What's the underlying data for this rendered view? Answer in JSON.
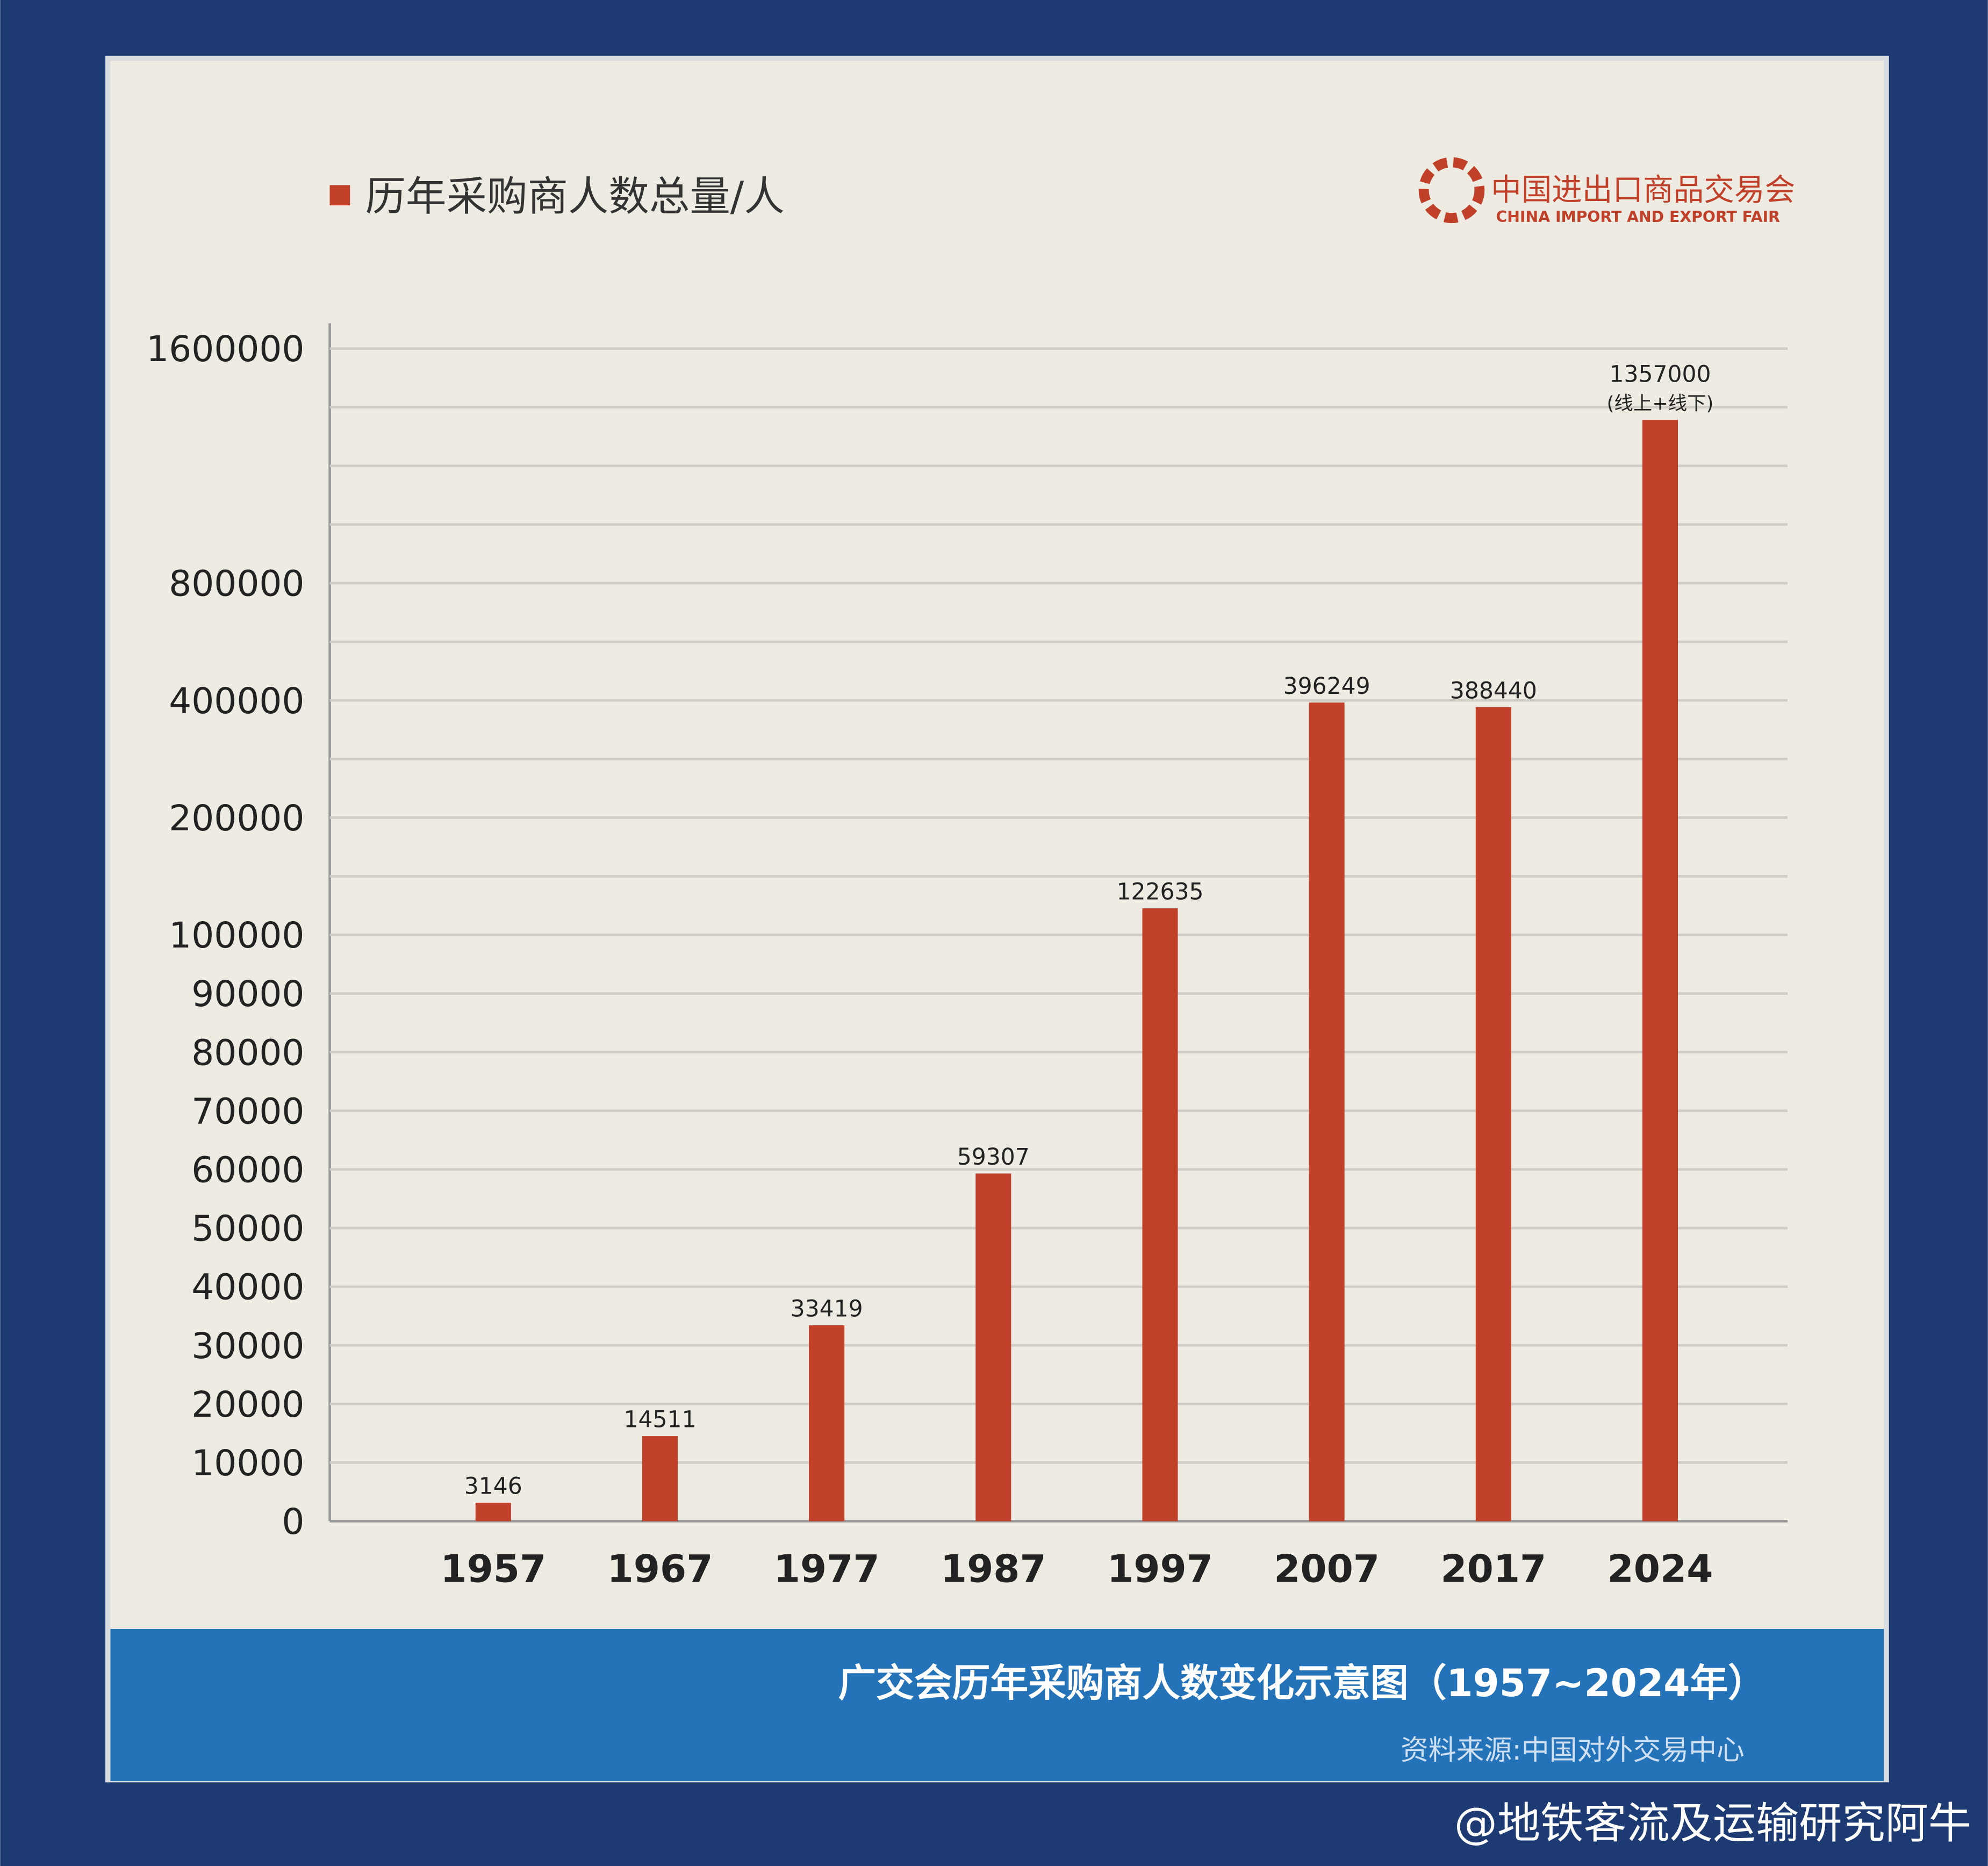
{
  "chart_data": {
    "type": "bar",
    "title": "历年采购商人数总量/人",
    "logo": {
      "name": "中国进出口商品交易会",
      "subtitle": "CHINA IMPORT AND EXPORT FAIR"
    },
    "caption": "广交会历年采购商人数变化示意图（1957~2024年）",
    "source": "资料来源:中国对外交易中心",
    "watermark": "@地铁客流及运输研究阿牛",
    "categories": [
      "1957",
      "1967",
      "1977",
      "1987",
      "1997",
      "2007",
      "2017",
      "2024"
    ],
    "values": [
      3146,
      14511,
      33419,
      59307,
      122635,
      396249,
      388440,
      1357000
    ],
    "annotations": [
      "(线上+线下)"
    ],
    "color": "#c0402a",
    "ylim": [
      0,
      1600000
    ],
    "yticks": [
      0,
      10000,
      20000,
      30000,
      40000,
      50000,
      60000,
      70000,
      80000,
      90000,
      100000,
      200000,
      400000,
      800000,
      1600000
    ],
    "grid": true
  }
}
